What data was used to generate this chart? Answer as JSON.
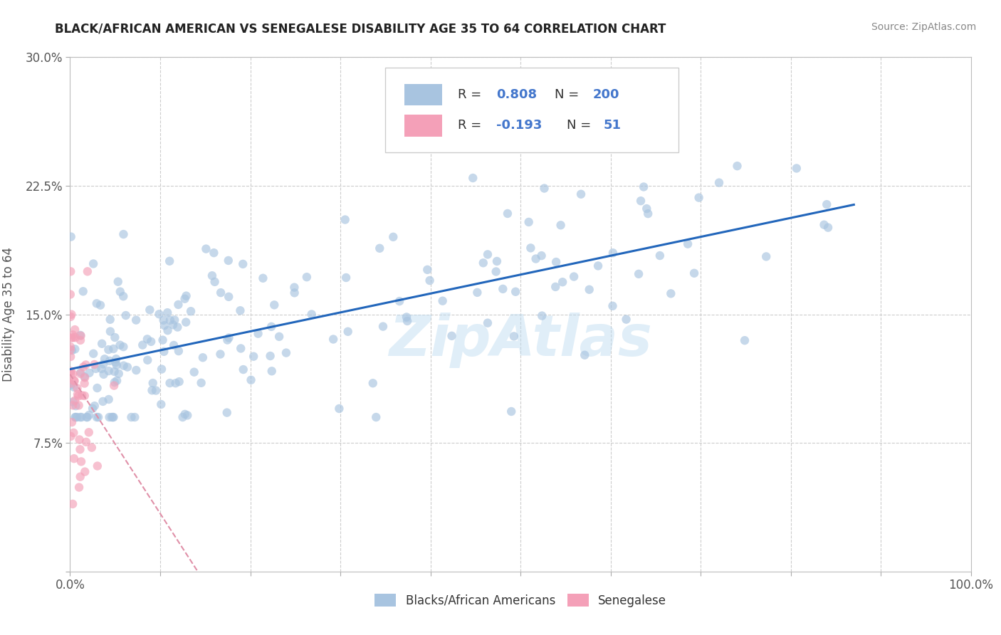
{
  "title": "BLACK/AFRICAN AMERICAN VS SENEGALESE DISABILITY AGE 35 TO 64 CORRELATION CHART",
  "source": "Source: ZipAtlas.com",
  "ylabel": "Disability Age 35 to 64",
  "xlim": [
    0,
    1.0
  ],
  "ylim": [
    0,
    0.3
  ],
  "xticks": [
    0.0,
    0.1,
    0.2,
    0.3,
    0.4,
    0.5,
    0.6,
    0.7,
    0.8,
    0.9,
    1.0
  ],
  "xtick_labels": [
    "0.0%",
    "",
    "",
    "",
    "",
    "",
    "",
    "",
    "",
    "",
    "100.0%"
  ],
  "yticks": [
    0.0,
    0.075,
    0.15,
    0.225,
    0.3
  ],
  "ytick_labels": [
    "",
    "7.5%",
    "15.0%",
    "22.5%",
    "30.0%"
  ],
  "blue_R": 0.808,
  "blue_N": 200,
  "pink_R": -0.193,
  "pink_N": 51,
  "blue_color": "#a8c4e0",
  "pink_color": "#f4a0b8",
  "blue_line_color": "#2266bb",
  "pink_line_color": "#e090a8",
  "legend_label_blue": "Blacks/African Americans",
  "legend_label_pink": "Senegalese",
  "grid_color": "#cccccc",
  "background_color": "#ffffff",
  "title_color": "#222222",
  "source_color": "#888888",
  "axis_label_color": "#555555",
  "tick_label_color": "#555555",
  "stat_color": "#4477cc",
  "scatter_size": 80,
  "blue_scatter_alpha": 0.65,
  "pink_scatter_alpha": 0.65,
  "blue_line_intercept": 0.115,
  "blue_line_slope": 0.132,
  "pink_line_intercept": 0.125,
  "pink_line_slope": -1.2
}
